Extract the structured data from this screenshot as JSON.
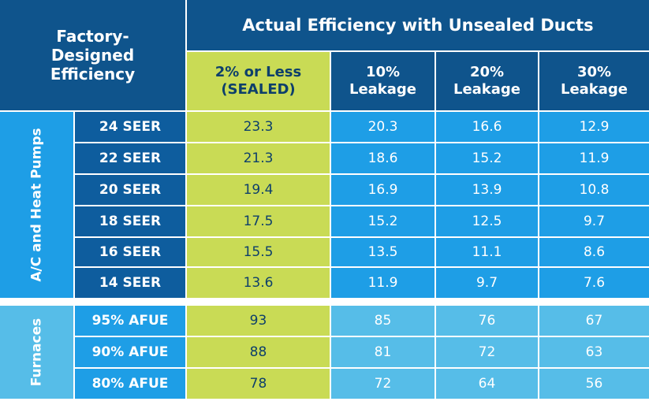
{
  "header": {
    "factory_label": [
      "Factory-",
      "Designed",
      "Efficiency"
    ],
    "title": "Actual Efficiency with Unsealed Ducts",
    "columns": [
      {
        "line1": "2% or Less",
        "line2": "(SEALED)"
      },
      {
        "line1": "10%",
        "line2": "Leakage"
      },
      {
        "line1": "20%",
        "line2": "Leakage"
      },
      {
        "line1": "30%",
        "line2": "Leakage"
      }
    ]
  },
  "groups": [
    {
      "category": "A/C and Heat Pumps",
      "rows": [
        {
          "label": "24 SEER",
          "values": [
            "23.3",
            "20.3",
            "16.6",
            "12.9"
          ]
        },
        {
          "label": "22 SEER",
          "values": [
            "21.3",
            "18.6",
            "15.2",
            "11.9"
          ]
        },
        {
          "label": "20 SEER",
          "values": [
            "19.4",
            "16.9",
            "13.9",
            "10.8"
          ]
        },
        {
          "label": "18 SEER",
          "values": [
            "17.5",
            "15.2",
            "12.5",
            "9.7"
          ]
        },
        {
          "label": "16 SEER",
          "values": [
            "15.5",
            "13.5",
            "11.1",
            "8.6"
          ]
        },
        {
          "label": "14 SEER",
          "values": [
            "13.6",
            "11.9",
            "9.7",
            "7.6"
          ]
        }
      ]
    },
    {
      "category": "Furnaces",
      "rows": [
        {
          "label": "95% AFUE",
          "values": [
            "93",
            "85",
            "76",
            "67"
          ]
        },
        {
          "label": "90% AFUE",
          "values": [
            "88",
            "81",
            "72",
            "63"
          ]
        },
        {
          "label": "80% AFUE",
          "values": [
            "78",
            "72",
            "64",
            "56"
          ]
        }
      ]
    }
  ],
  "colors": {
    "dark_header": "#0f548c",
    "sealed_green": "#c9db55",
    "ac_blue": "#1e9ee6",
    "furnace_light_blue": "#56bde8"
  }
}
